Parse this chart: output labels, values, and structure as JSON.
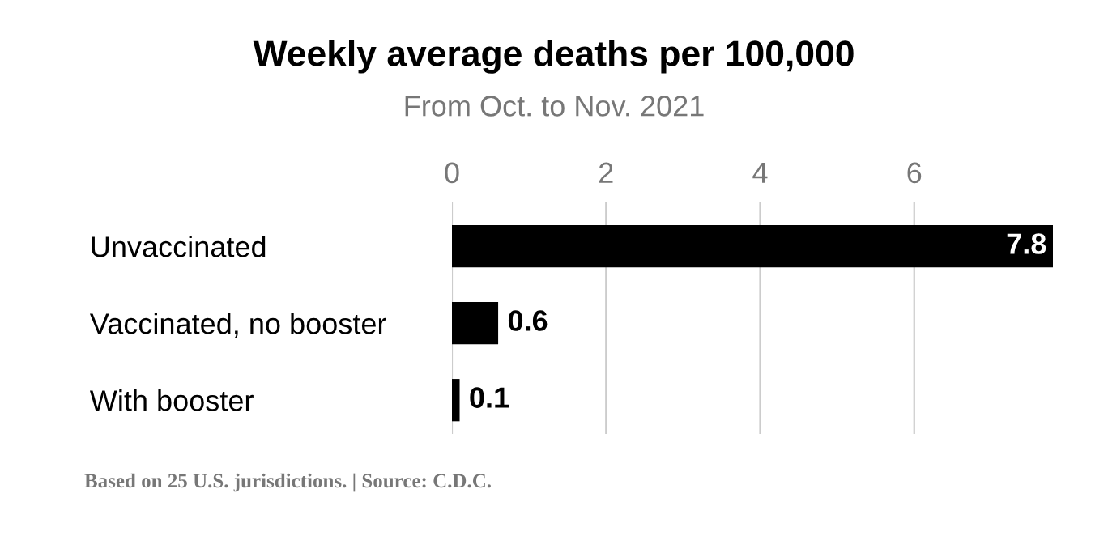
{
  "chart_data": {
    "type": "bar",
    "orientation": "horizontal",
    "title": "Weekly average deaths per 100,000",
    "subtitle": "From Oct. to Nov. 2021",
    "categories": [
      "Unvaccinated",
      "Vaccinated, no booster",
      "With booster"
    ],
    "values": [
      7.8,
      0.6,
      0.1
    ],
    "color": "#000000",
    "xlim": [
      0,
      7.8
    ],
    "xticks": [
      0,
      2,
      4,
      6
    ],
    "grid": "x",
    "data_labels": true,
    "annotations": [
      "Based on 25 U.S. jurisdictions. | Source: C.D.C."
    ]
  }
}
